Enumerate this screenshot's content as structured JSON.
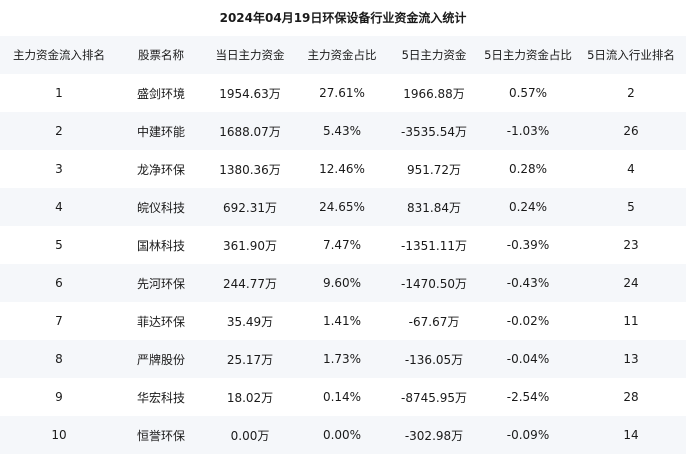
{
  "title": "2024年04月19日环保设备行业资金流入统计",
  "columns": [
    "主力资金流入排名",
    "股票名称",
    "当日主力资金",
    "主力资金占比",
    "5日主力资金",
    "5日主力资金占比",
    "5日流入行业排名"
  ],
  "rows": [
    [
      "1",
      "盛剑环境",
      "1954.63万",
      "27.61%",
      "1966.88万",
      "0.57%",
      "2"
    ],
    [
      "2",
      "中建环能",
      "1688.07万",
      "5.43%",
      "-3535.54万",
      "-1.03%",
      "26"
    ],
    [
      "3",
      "龙净环保",
      "1380.36万",
      "12.46%",
      "951.72万",
      "0.28%",
      "4"
    ],
    [
      "4",
      "皖仪科技",
      "692.31万",
      "24.65%",
      "831.84万",
      "0.24%",
      "5"
    ],
    [
      "5",
      "国林科技",
      "361.90万",
      "7.47%",
      "-1351.11万",
      "-0.39%",
      "23"
    ],
    [
      "6",
      "先河环保",
      "244.77万",
      "9.60%",
      "-1470.50万",
      "-0.43%",
      "24"
    ],
    [
      "7",
      "菲达环保",
      "35.49万",
      "1.41%",
      "-67.67万",
      "-0.02%",
      "11"
    ],
    [
      "8",
      "严牌股份",
      "25.17万",
      "1.73%",
      "-136.05万",
      "-0.04%",
      "13"
    ],
    [
      "9",
      "华宏科技",
      "18.02万",
      "0.14%",
      "-8745.95万",
      "-2.54%",
      "28"
    ],
    [
      "10",
      "恒誉环保",
      "0.00万",
      "0.00%",
      "-302.98万",
      "-0.09%",
      "14"
    ]
  ]
}
